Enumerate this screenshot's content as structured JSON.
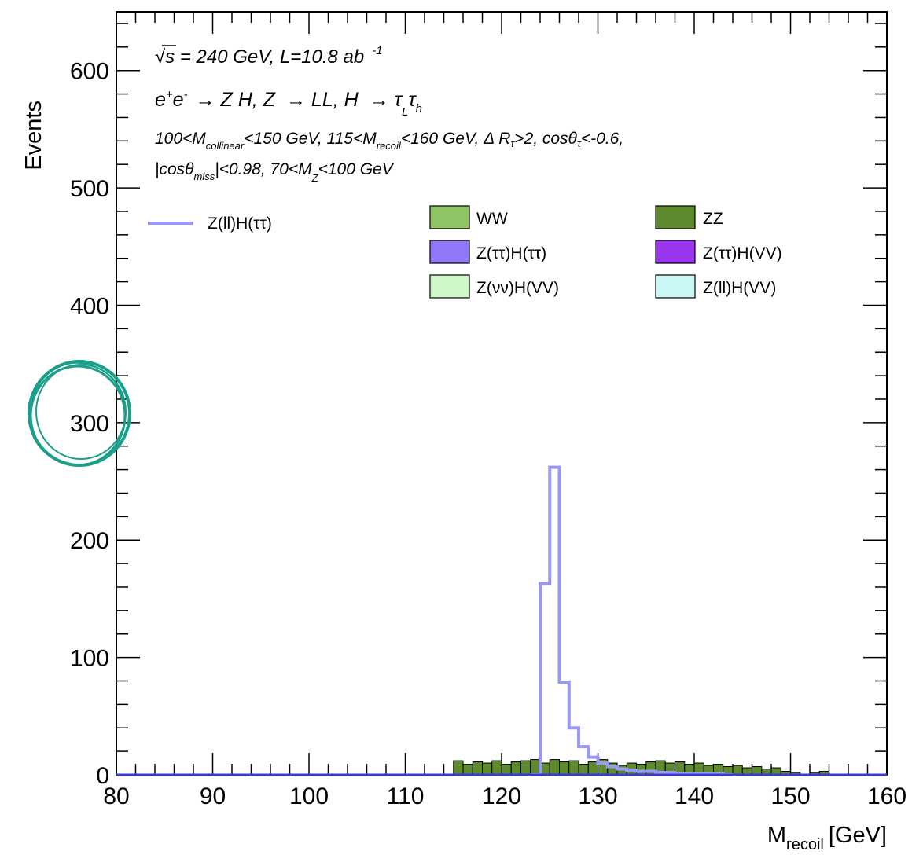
{
  "chart_data": {
    "type": "bar",
    "stacked": true,
    "xlim": [
      80,
      160
    ],
    "ylim": [
      0,
      650
    ],
    "x_ticks": [
      "80",
      "90",
      "100",
      "110",
      "120",
      "130",
      "140",
      "150",
      "160"
    ],
    "y_ticks": [
      "0",
      "100",
      "200",
      "300",
      "400",
      "500",
      "600"
    ],
    "ylabel": "Events",
    "xlabel": {
      "main": "M",
      "sub": "recoil",
      "unit": "[GeV]"
    },
    "annotations": {
      "line1": {
        "sqrt": "√",
        "s_eq": "s = 240 GeV, L=10.8 ab",
        "sup": "-1"
      },
      "line2": {
        "a": "e",
        "a_sup": "+",
        "b": "e",
        "b_sup": "-",
        "c": "→ Z H, Z",
        "d": "→ LL, H",
        "e": "→ τ",
        "e_sub": "L",
        "f": "τ",
        "f_sub": "h"
      },
      "line3": {
        "a": "100<M",
        "a_sub": "collinear",
        "b": "<150 GeV, 115<M",
        "b_sub": "recoil",
        "c": "<160 GeV, Δ R",
        "c_sub": "τ",
        "d": ">2, cosθ",
        "d_sub": "τ",
        "e": "<-0.6,"
      },
      "line4": {
        "a": "|cosθ",
        "a_sub": "miss",
        "b": "|<0.98, 70<M",
        "b_sub": "Z",
        "c": "<100 GeV"
      }
    },
    "legend": {
      "line_entry": "Z(ll)H(ττ)",
      "fill_entries": [
        "WW",
        "ZZ",
        "Z(ττ)H(ττ)",
        "Z(ττ)H(VV)",
        "Z(νν)H(VV)",
        "Z(ll)H(VV)"
      ]
    },
    "colors": {
      "signal_line": "#9999f5",
      "WW": "#8fc464",
      "ZZ": "#5e8a2e",
      "ZttHtt": "#9077f7",
      "ZttHVV": "#9a36f0",
      "ZvvHVV": "#cff7c9",
      "ZllHVV": "#c9f7f5",
      "baseline": "#3a3ad0",
      "mark": "#1a9f8a"
    },
    "bin_width": 1,
    "signal": {
      "name": "Z(ll)H(ττ)",
      "bins": [
        [
          123,
          0
        ],
        [
          124,
          163
        ],
        [
          125,
          262
        ],
        [
          126,
          79
        ],
        [
          127,
          40
        ],
        [
          128,
          24
        ],
        [
          129,
          15
        ],
        [
          130,
          10
        ],
        [
          131,
          7
        ],
        [
          132,
          5
        ],
        [
          133,
          4
        ],
        [
          134,
          3
        ],
        [
          135,
          3
        ],
        [
          136,
          2
        ],
        [
          137,
          2
        ],
        [
          138,
          1
        ],
        [
          139,
          1
        ],
        [
          140,
          1
        ],
        [
          141,
          1
        ],
        [
          142,
          1
        ],
        [
          143,
          0
        ]
      ]
    },
    "background_total": {
      "name": "WW + ZZ",
      "bins": [
        [
          115,
          12
        ],
        [
          116,
          9
        ],
        [
          117,
          11
        ],
        [
          118,
          10
        ],
        [
          119,
          12
        ],
        [
          120,
          9
        ],
        [
          121,
          11
        ],
        [
          122,
          12
        ],
        [
          123,
          13
        ],
        [
          124,
          10
        ],
        [
          125,
          13
        ],
        [
          126,
          11
        ],
        [
          127,
          12
        ],
        [
          128,
          9
        ],
        [
          129,
          11
        ],
        [
          130,
          13
        ],
        [
          131,
          10
        ],
        [
          132,
          8
        ],
        [
          133,
          10
        ],
        [
          134,
          9
        ],
        [
          135,
          11
        ],
        [
          136,
          12
        ],
        [
          137,
          10
        ],
        [
          138,
          11
        ],
        [
          139,
          9
        ],
        [
          140,
          10
        ],
        [
          141,
          8
        ],
        [
          142,
          9
        ],
        [
          143,
          7
        ],
        [
          144,
          8
        ],
        [
          145,
          6
        ],
        [
          146,
          7
        ],
        [
          147,
          5
        ],
        [
          148,
          6
        ],
        [
          149,
          3
        ],
        [
          150,
          2
        ],
        [
          152,
          2
        ],
        [
          153,
          3
        ]
      ]
    }
  }
}
